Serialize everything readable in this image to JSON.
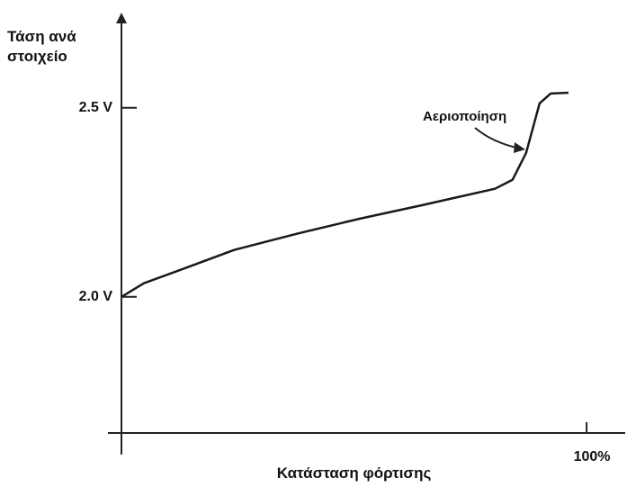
{
  "chart_data": {
    "type": "line",
    "ylabel": "Τάση ανά στοιχείο",
    "xlabel": "Κατάσταση φόρτισης",
    "annotation": "Αεριοποίηση",
    "x": [
      0,
      4.8,
      12.6,
      24.2,
      37.7,
      51.3,
      64.8,
      80.3,
      84.1,
      87.0,
      89.9,
      92.3,
      96.1
    ],
    "series": [
      {
        "color": "#1a1a1a",
        "values": [
          2.0,
          2.036,
          2.071,
          2.124,
          2.167,
          2.207,
          2.243,
          2.286,
          2.31,
          2.381,
          2.512,
          2.538,
          2.54
        ]
      }
    ],
    "xlim": [
      0,
      108.3
    ],
    "ylim": [
      1.64,
      2.74
    ],
    "xticks": [
      {
        "value": 100,
        "label": "100%"
      }
    ],
    "yticks": [
      {
        "value": 2.0,
        "label": "2.0 V"
      },
      {
        "value": 2.5,
        "label": "2.5 V"
      }
    ]
  }
}
